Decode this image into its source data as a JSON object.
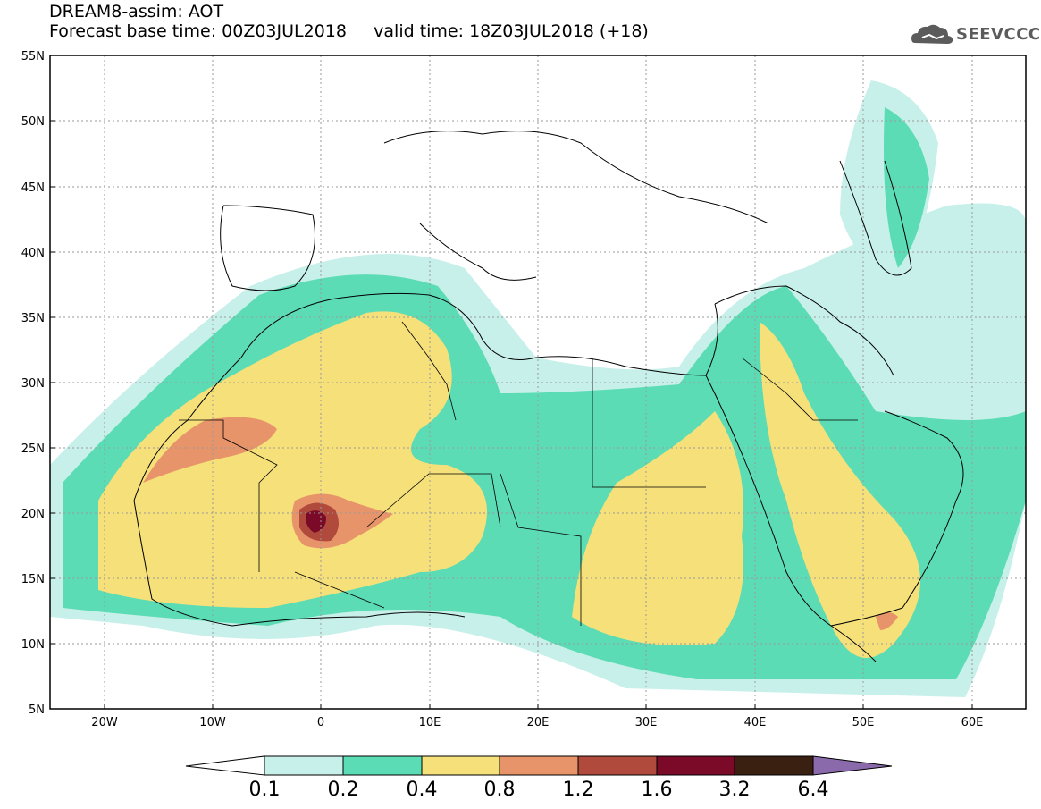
{
  "header": {
    "line1": "DREAM8-assim: AOT",
    "line2": "Forecast base time: 00Z03JUL2018     valid time: 18Z03JUL2018 (+18)",
    "logo_text": "SEEVCCC"
  },
  "axes": {
    "lat_labels": [
      "55N",
      "50N",
      "45N",
      "40N",
      "35N",
      "30N",
      "25N",
      "20N",
      "15N",
      "10N",
      "5N"
    ],
    "lon_labels": [
      "20W",
      "10W",
      "0",
      "10E",
      "20E",
      "30E",
      "40E",
      "50E",
      "60E"
    ]
  },
  "colorbar": {
    "labels": [
      "0.1",
      "0.2",
      "0.4",
      "0.8",
      "1.2",
      "1.6",
      "3.2",
      "6.4"
    ],
    "colors": [
      "#c8f0ea",
      "#5cdcb4",
      "#f5e07a",
      "#e8946a",
      "#b04a3c",
      "#7a0a28",
      "#3a2010",
      "#8a6aaa"
    ]
  },
  "palette": {
    "frame": "#000000",
    "grid": "#9a9a9a",
    "land": "#ffffff",
    "logo": "#5b5b5b"
  }
}
